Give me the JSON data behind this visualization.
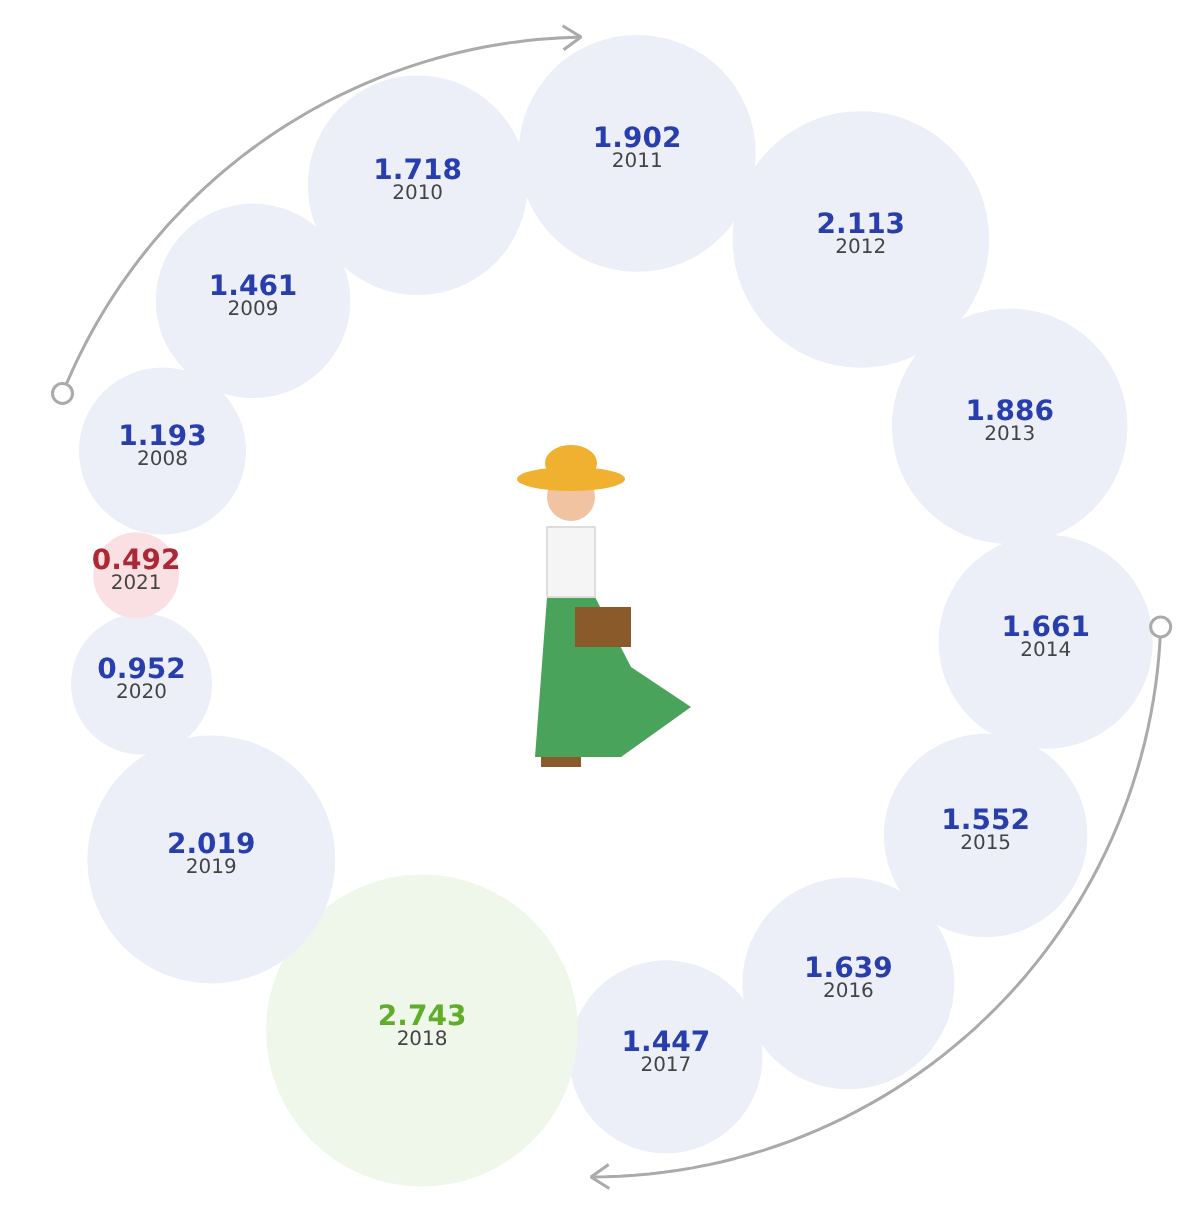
{
  "chart_data": {
    "type": "other",
    "categories": [
      "2008",
      "2009",
      "2010",
      "2011",
      "2012",
      "2013",
      "2014",
      "2015",
      "2016",
      "2017",
      "2018",
      "2019",
      "2020",
      "2021"
    ],
    "values": [
      1.193,
      1.461,
      1.718,
      1.902,
      2.113,
      1.886,
      1.661,
      1.552,
      1.639,
      1.447,
      2.743,
      2.019,
      0.952,
      0.492
    ],
    "colors": [
      "#eceef8",
      "#eceef8",
      "#eceef8",
      "#eceef8",
      "#eceef8",
      "#eceef8",
      "#eceef8",
      "#eceef8",
      "#eceef8",
      "#eceef8",
      "#eff6ea",
      "#eceef8",
      "#eceef8",
      "#fbe0e3"
    ],
    "data_labels": true
  }
}
